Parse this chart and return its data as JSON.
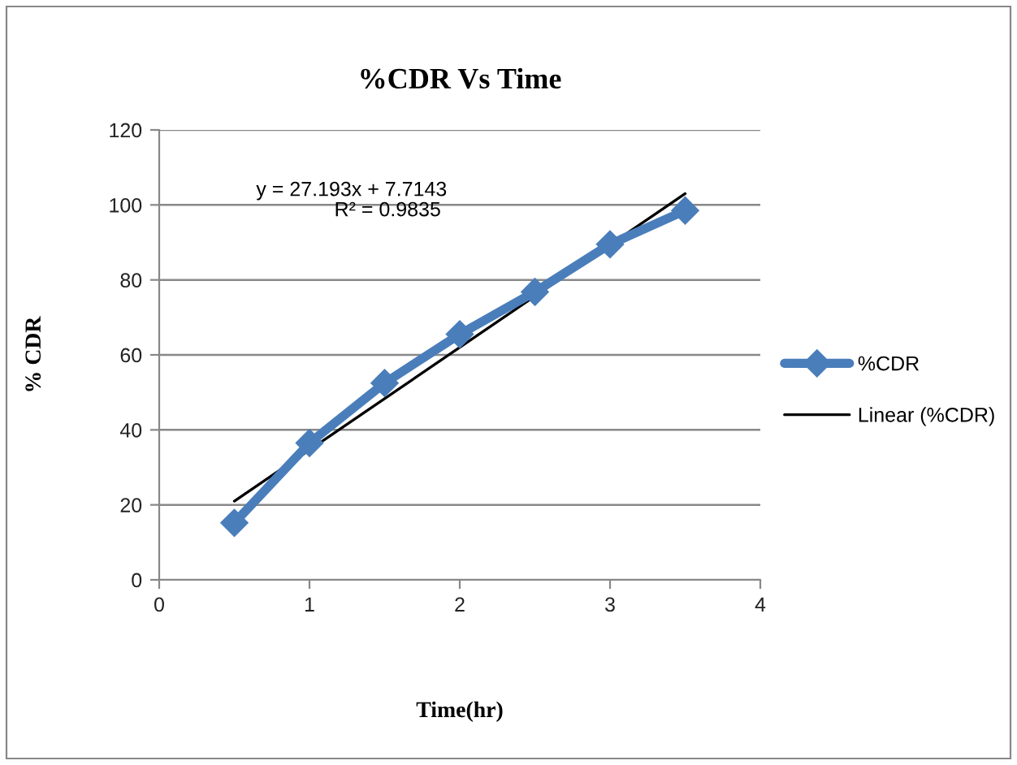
{
  "chart_data": {
    "type": "line",
    "title": "%CDR Vs Time",
    "xlabel": "Time(hr)",
    "ylabel": "% CDR",
    "x": [
      0.5,
      1,
      1.5,
      2,
      2.5,
      3,
      3.5
    ],
    "series": [
      {
        "name": "%CDR",
        "color": "#4a7ebb",
        "values": [
          15.2,
          36.5,
          52.5,
          65.5,
          76.8,
          89.5,
          98.5
        ],
        "marker": "diamond"
      },
      {
        "name": "Linear (%CDR)",
        "color": "#000000",
        "x": [
          0.5,
          3.5
        ],
        "values": [
          21,
          103
        ],
        "marker": "none"
      }
    ],
    "annotations": [
      "y = 27.193x + 7.7143",
      "R² = 0.9835"
    ],
    "xlim": [
      0,
      4
    ],
    "xticks": [
      0,
      1,
      2,
      3,
      4
    ],
    "ylim": [
      0,
      120
    ],
    "yticks": [
      0,
      20,
      40,
      60,
      80,
      100,
      120
    ],
    "grid": "y",
    "legend": "right",
    "line_style": "solid"
  }
}
